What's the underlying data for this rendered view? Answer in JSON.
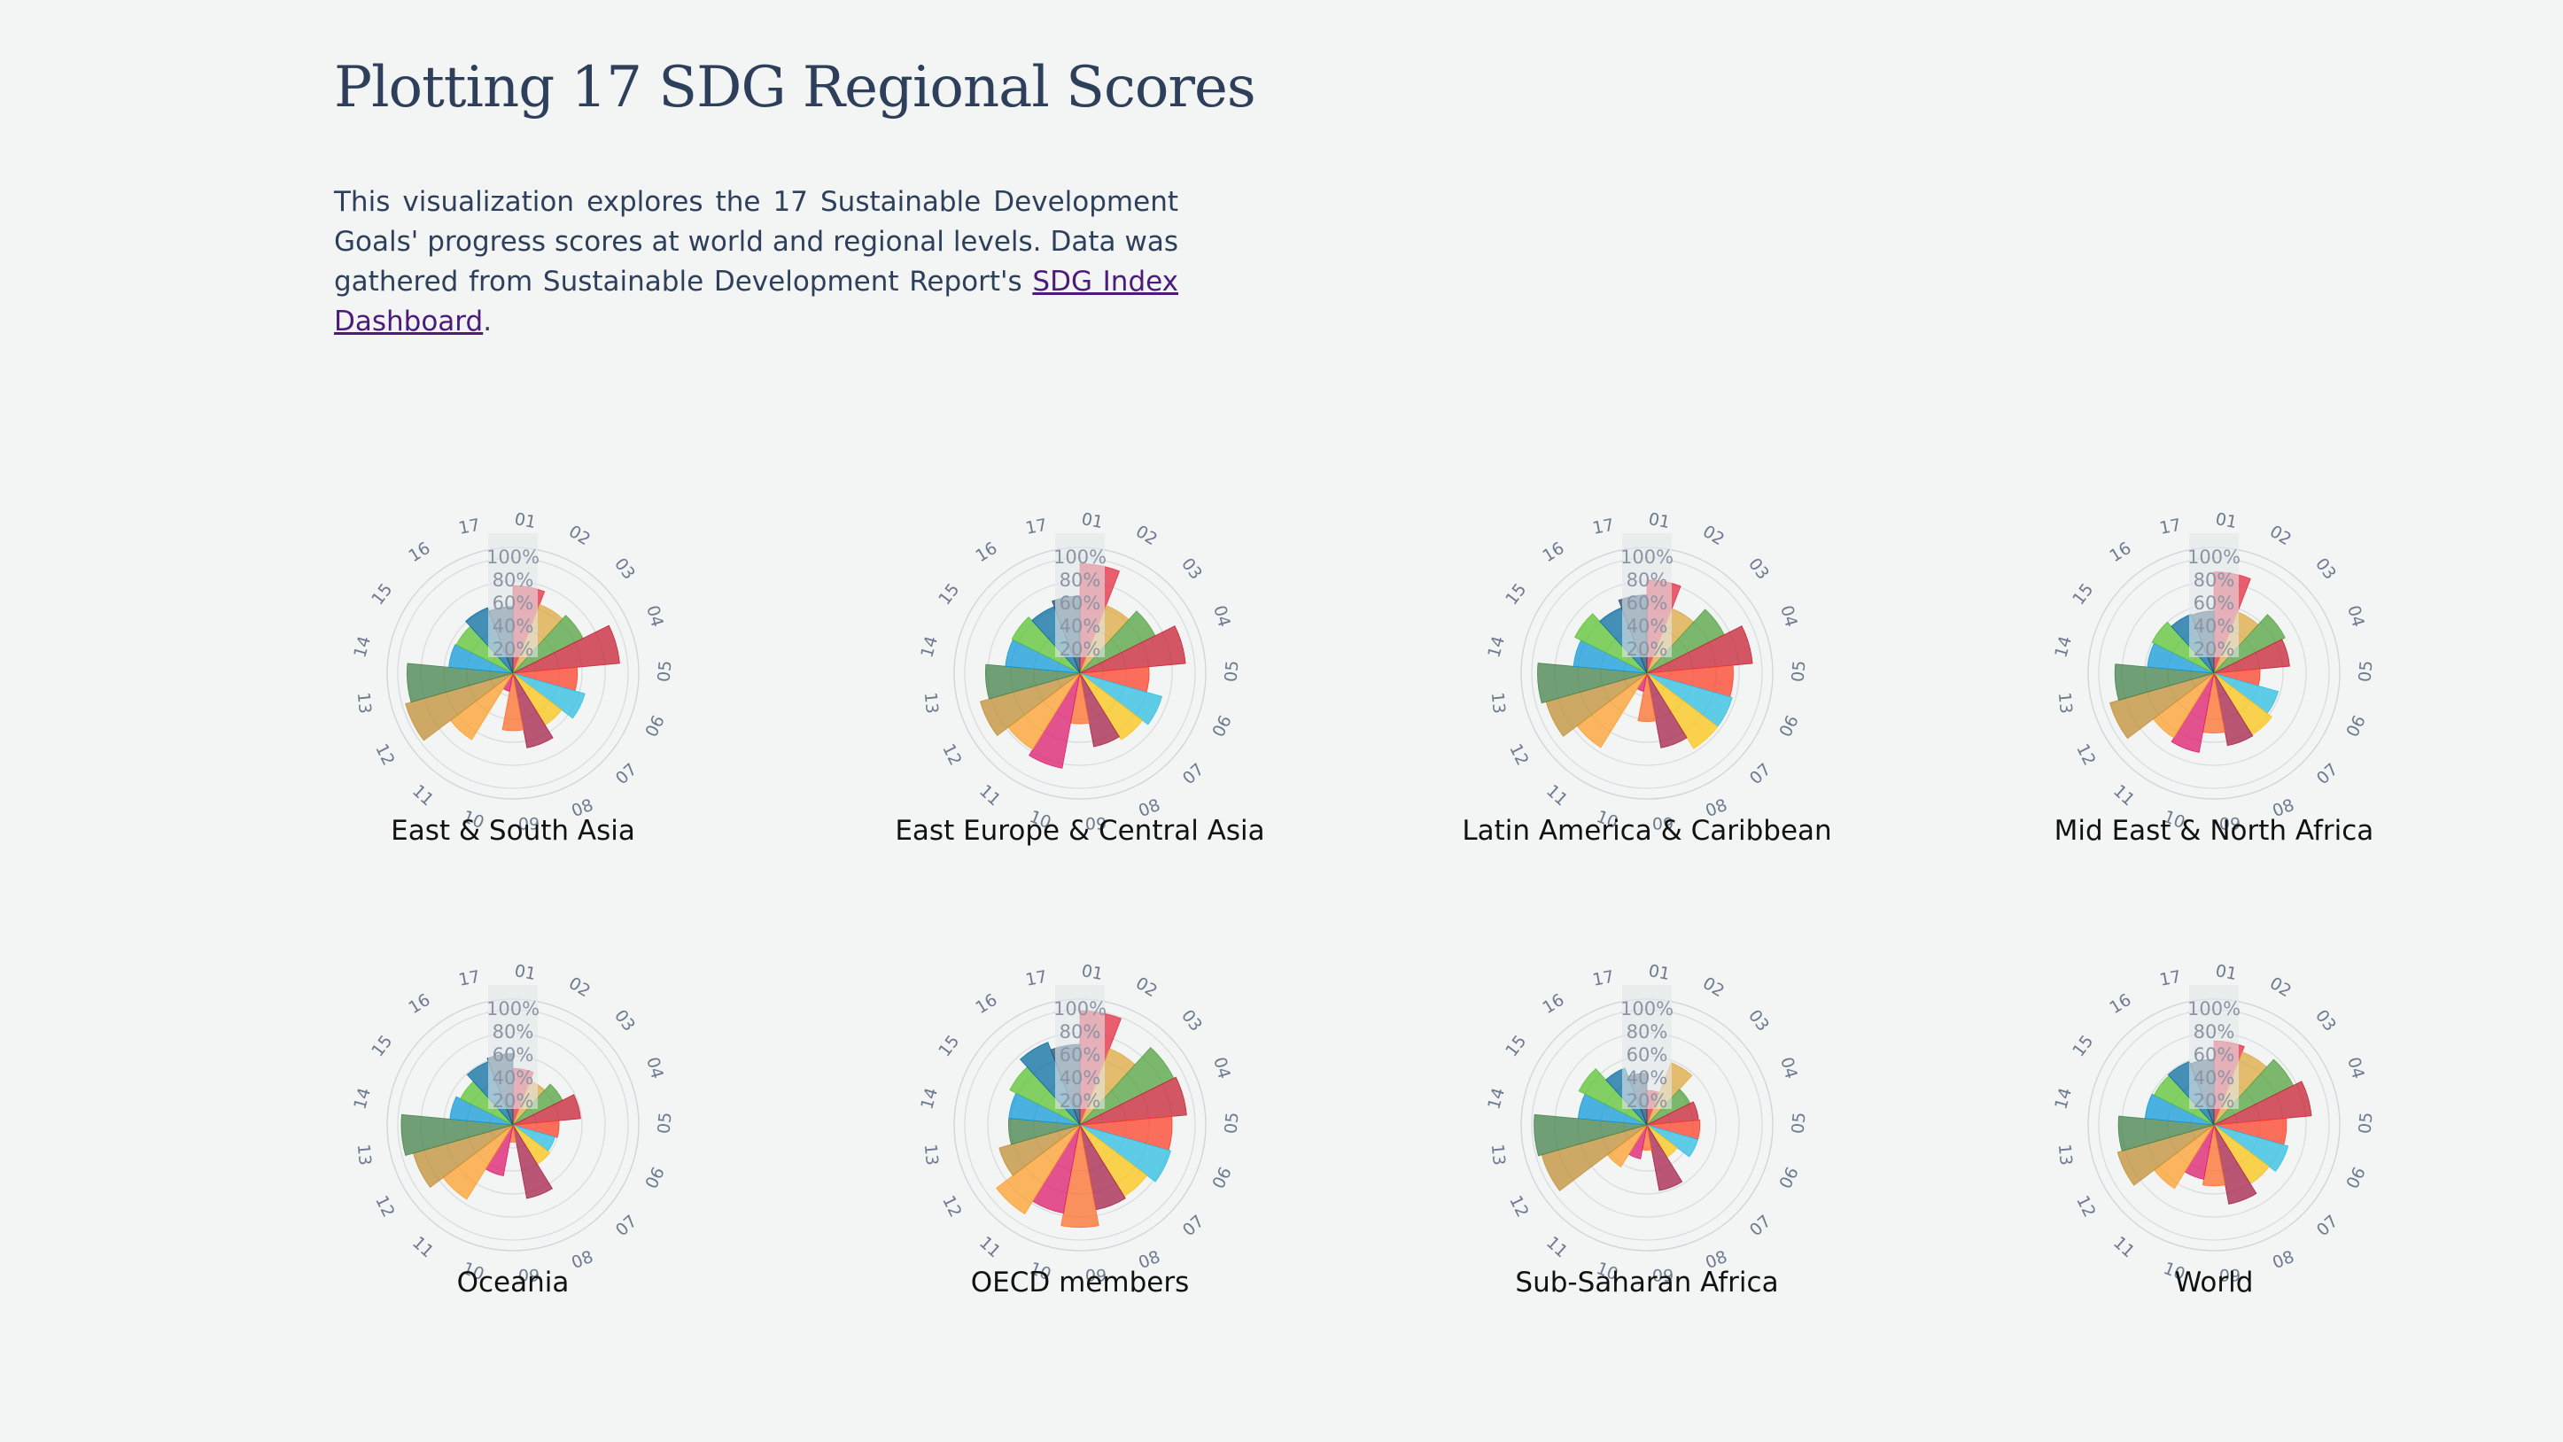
{
  "header": {
    "title": "Plotting 17 SDG Regional Scores",
    "intro_text": "This visualization explores the 17 Sustainable Development Goals' progress scores at world and regional levels. Data was gathered from Sustainable Development Report's ",
    "intro_link": "SDG Index Dashboard",
    "intro_end": "."
  },
  "palette": [
    "#e5243b",
    "#dda63a",
    "#4c9f38",
    "#c5192d",
    "#ff3a21",
    "#26bde2",
    "#fcc30b",
    "#a21942",
    "#fd6925",
    "#dd1367",
    "#fd9d24",
    "#bf8b2e",
    "#3f7e44",
    "#0a97d9",
    "#56c02b",
    "#00689d",
    "#19486a"
  ],
  "chart_data": [
    {
      "type": "polar-bar",
      "title": "East & South Asia",
      "categories": [
        "01",
        "02",
        "03",
        "04",
        "05",
        "06",
        "07",
        "08",
        "09",
        "10",
        "11",
        "12",
        "13",
        "14",
        "15",
        "16",
        "17"
      ],
      "radial_ticks": [
        "20%",
        "40%",
        "60%",
        "80%",
        "100%"
      ],
      "ylim": [
        0,
        100
      ],
      "values": [
        76,
        64,
        68,
        93,
        56,
        65,
        53,
        66,
        50,
        16,
        68,
        97,
        92,
        56,
        55,
        61,
        58
      ]
    },
    {
      "type": "polar-bar",
      "title": "East Europe & Central Asia",
      "categories": [
        "01",
        "02",
        "03",
        "04",
        "05",
        "06",
        "07",
        "08",
        "09",
        "10",
        "11",
        "12",
        "13",
        "14",
        "15",
        "16",
        "17"
      ],
      "radial_ticks": [
        "20%",
        "40%",
        "60%",
        "80%",
        "100%"
      ],
      "ylim": [
        0,
        100
      ],
      "values": [
        95,
        63,
        73,
        92,
        60,
        74,
        68,
        65,
        44,
        84,
        78,
        90,
        82,
        65,
        66,
        62,
        67
      ]
    },
    {
      "type": "polar-bar",
      "title": "Latin America & Caribbean",
      "categories": [
        "01",
        "02",
        "03",
        "04",
        "05",
        "06",
        "07",
        "08",
        "09",
        "10",
        "11",
        "12",
        "13",
        "14",
        "15",
        "16",
        "17"
      ],
      "radial_ticks": [
        "20%",
        "40%",
        "60%",
        "80%",
        "100%"
      ],
      "ylim": [
        0,
        100
      ],
      "values": [
        81,
        60,
        75,
        92,
        75,
        77,
        77,
        66,
        42,
        16,
        76,
        91,
        95,
        64,
        70,
        61,
        68
      ]
    },
    {
      "type": "polar-bar",
      "title": "Mid East & North Africa",
      "categories": [
        "01",
        "02",
        "03",
        "04",
        "05",
        "06",
        "07",
        "08",
        "09",
        "10",
        "11",
        "12",
        "13",
        "14",
        "15",
        "16",
        "17"
      ],
      "radial_ticks": [
        "20%",
        "40%",
        "60%",
        "80%",
        "100%"
      ],
      "ylim": [
        0,
        100
      ],
      "values": [
        88,
        57,
        69,
        66,
        40,
        58,
        63,
        64,
        52,
        70,
        66,
        94,
        86,
        58,
        60,
        55,
        54
      ]
    },
    {
      "type": "polar-bar",
      "title": "Oceania",
      "categories": [
        "01",
        "02",
        "03",
        "04",
        "05",
        "06",
        "07",
        "08",
        "09",
        "10",
        "11",
        "12",
        "13",
        "14",
        "15",
        "16",
        "17"
      ],
      "radial_ticks": [
        "20%",
        "40%",
        "60%",
        "80%",
        "100%"
      ],
      "ylim": [
        0,
        100
      ],
      "values": [
        49,
        41,
        48,
        59,
        40,
        38,
        40,
        65,
        15,
        45,
        76,
        90,
        97,
        55,
        51,
        59,
        62
      ]
    },
    {
      "type": "polar-bar",
      "title": "OECD members",
      "categories": [
        "01",
        "02",
        "03",
        "04",
        "05",
        "06",
        "07",
        "08",
        "09",
        "10",
        "11",
        "12",
        "13",
        "14",
        "15",
        "16",
        "17"
      ],
      "radial_ticks": [
        "20%",
        "40%",
        "60%",
        "80%",
        "100%"
      ],
      "ylim": [
        0,
        100
      ],
      "values": [
        99,
        71,
        91,
        93,
        80,
        82,
        73,
        75,
        89,
        78,
        91,
        73,
        62,
        62,
        68,
        77,
        70
      ]
    },
    {
      "type": "polar-bar",
      "title": "Sub-Saharan Africa",
      "categories": [
        "01",
        "02",
        "03",
        "04",
        "05",
        "06",
        "07",
        "08",
        "09",
        "10",
        "11",
        "12",
        "13",
        "14",
        "15",
        "16",
        "17"
      ],
      "radial_ticks": [
        "20%",
        "40%",
        "60%",
        "80%",
        "100%"
      ],
      "ylim": [
        0,
        100
      ],
      "values": [
        30,
        58,
        42,
        45,
        46,
        46,
        33,
        58,
        22,
        30,
        43,
        95,
        98,
        60,
        66,
        53,
        45
      ]
    },
    {
      "type": "polar-bar",
      "title": "World",
      "categories": [
        "01",
        "02",
        "03",
        "04",
        "05",
        "06",
        "07",
        "08",
        "09",
        "10",
        "11",
        "12",
        "13",
        "14",
        "15",
        "16",
        "17"
      ],
      "radial_ticks": [
        "20%",
        "40%",
        "60%",
        "80%",
        "100%"
      ],
      "ylim": [
        0,
        100
      ],
      "values": [
        73,
        68,
        77,
        85,
        63,
        67,
        60,
        70,
        53,
        48,
        65,
        87,
        83,
        60,
        58,
        59,
        57
      ]
    }
  ]
}
